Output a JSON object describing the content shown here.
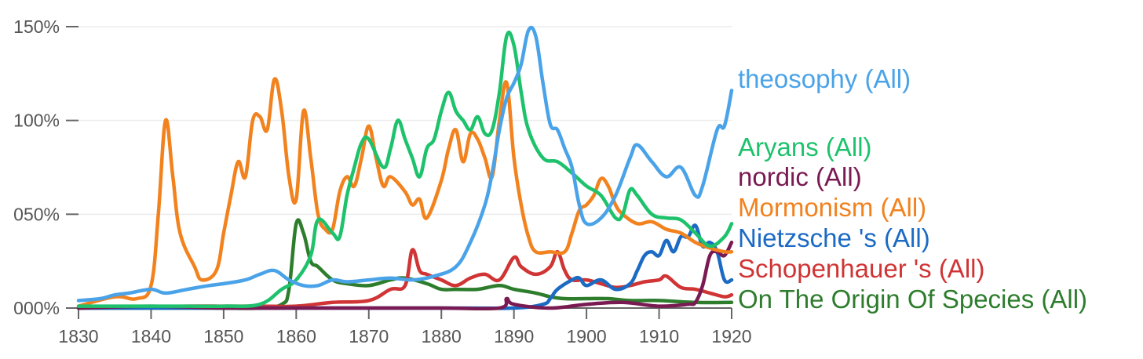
{
  "chart_data": {
    "type": "line",
    "x_ticks": [
      "1830",
      "1840",
      "1850",
      "1860",
      "1870",
      "1880",
      "1890",
      "1900",
      "1910",
      "1920"
    ],
    "y_ticks": [
      "000%",
      "050%",
      "100%",
      "150%"
    ],
    "y_tick_values": [
      0,
      0.5,
      1.0,
      1.5
    ],
    "xlim": [
      1830,
      1920
    ],
    "ylim": [
      0,
      1.5
    ],
    "grid": "horizontal",
    "legend_placement": "right",
    "series": [
      {
        "name": "theosophy (All)",
        "color": "#4AA3E8",
        "points": [
          [
            1830,
            0.04
          ],
          [
            1833,
            0.05
          ],
          [
            1835,
            0.07
          ],
          [
            1837,
            0.08
          ],
          [
            1840,
            0.1
          ],
          [
            1842,
            0.08
          ],
          [
            1845,
            0.1
          ],
          [
            1848,
            0.12
          ],
          [
            1850,
            0.13
          ],
          [
            1853,
            0.15
          ],
          [
            1855,
            0.18
          ],
          [
            1857,
            0.2
          ],
          [
            1859,
            0.15
          ],
          [
            1861,
            0.12
          ],
          [
            1863,
            0.12
          ],
          [
            1865,
            0.15
          ],
          [
            1867,
            0.14
          ],
          [
            1870,
            0.15
          ],
          [
            1873,
            0.16
          ],
          [
            1876,
            0.15
          ],
          [
            1879,
            0.17
          ],
          [
            1882,
            0.22
          ],
          [
            1884,
            0.35
          ],
          [
            1886,
            0.55
          ],
          [
            1887,
            0.72
          ],
          [
            1888,
            0.95
          ],
          [
            1889,
            1.12
          ],
          [
            1890,
            1.2
          ],
          [
            1891,
            1.3
          ],
          [
            1892,
            1.48
          ],
          [
            1893,
            1.45
          ],
          [
            1894,
            1.2
          ],
          [
            1895,
            0.98
          ],
          [
            1896,
            0.95
          ],
          [
            1897,
            0.85
          ],
          [
            1898,
            0.75
          ],
          [
            1899,
            0.55
          ],
          [
            1900,
            0.45
          ],
          [
            1902,
            0.48
          ],
          [
            1904,
            0.6
          ],
          [
            1906,
            0.8
          ],
          [
            1907,
            0.87
          ],
          [
            1909,
            0.78
          ],
          [
            1911,
            0.7
          ],
          [
            1913,
            0.75
          ],
          [
            1915,
            0.6
          ],
          [
            1916,
            0.65
          ],
          [
            1918,
            0.95
          ],
          [
            1919,
            0.97
          ],
          [
            1920,
            1.16
          ]
        ]
      },
      {
        "name": "Aryans (All)",
        "color": "#1EC26C",
        "points": [
          [
            1830,
            0.01
          ],
          [
            1835,
            0.01
          ],
          [
            1840,
            0.01
          ],
          [
            1845,
            0.01
          ],
          [
            1850,
            0.01
          ],
          [
            1855,
            0.02
          ],
          [
            1858,
            0.1
          ],
          [
            1860,
            0.15
          ],
          [
            1862,
            0.28
          ],
          [
            1863,
            0.47
          ],
          [
            1865,
            0.4
          ],
          [
            1866,
            0.38
          ],
          [
            1867,
            0.6
          ],
          [
            1868,
            0.75
          ],
          [
            1869,
            0.88
          ],
          [
            1870,
            0.9
          ],
          [
            1872,
            0.75
          ],
          [
            1873,
            0.85
          ],
          [
            1874,
            1.0
          ],
          [
            1875,
            0.9
          ],
          [
            1876,
            0.8
          ],
          [
            1877,
            0.7
          ],
          [
            1878,
            0.85
          ],
          [
            1879,
            0.9
          ],
          [
            1880,
            1.05
          ],
          [
            1881,
            1.15
          ],
          [
            1882,
            1.05
          ],
          [
            1883,
            1.0
          ],
          [
            1884,
            0.95
          ],
          [
            1885,
            1.02
          ],
          [
            1886,
            0.93
          ],
          [
            1887,
            0.95
          ],
          [
            1888,
            1.15
          ],
          [
            1889,
            1.45
          ],
          [
            1890,
            1.4
          ],
          [
            1891,
            1.15
          ],
          [
            1892,
            0.95
          ],
          [
            1894,
            0.8
          ],
          [
            1896,
            0.78
          ],
          [
            1898,
            0.72
          ],
          [
            1900,
            0.65
          ],
          [
            1902,
            0.6
          ],
          [
            1904,
            0.48
          ],
          [
            1905,
            0.5
          ],
          [
            1906,
            0.63
          ],
          [
            1907,
            0.6
          ],
          [
            1909,
            0.5
          ],
          [
            1911,
            0.48
          ],
          [
            1913,
            0.47
          ],
          [
            1915,
            0.4
          ],
          [
            1917,
            0.33
          ],
          [
            1919,
            0.38
          ],
          [
            1920,
            0.45
          ]
        ]
      },
      {
        "name": "nordic (All)",
        "color": "#7A1A52",
        "points": [
          [
            1830,
            0.0
          ],
          [
            1840,
            0.01
          ],
          [
            1850,
            0.0
          ],
          [
            1860,
            0.0
          ],
          [
            1870,
            0.0
          ],
          [
            1880,
            0.0
          ],
          [
            1888,
            0.0
          ],
          [
            1889,
            0.05
          ],
          [
            1890,
            0.02
          ],
          [
            1895,
            0.0
          ],
          [
            1900,
            0.02
          ],
          [
            1905,
            0.03
          ],
          [
            1910,
            0.01
          ],
          [
            1914,
            0.02
          ],
          [
            1915,
            0.03
          ],
          [
            1916,
            0.12
          ],
          [
            1917,
            0.28
          ],
          [
            1918,
            0.3
          ],
          [
            1919,
            0.28
          ],
          [
            1920,
            0.35
          ]
        ]
      },
      {
        "name": "Mormonism (All)",
        "color": "#F2821E",
        "points": [
          [
            1830,
            0.01
          ],
          [
            1835,
            0.06
          ],
          [
            1838,
            0.05
          ],
          [
            1840,
            0.12
          ],
          [
            1841,
            0.5
          ],
          [
            1842,
            1.0
          ],
          [
            1843,
            0.7
          ],
          [
            1844,
            0.4
          ],
          [
            1846,
            0.22
          ],
          [
            1847,
            0.15
          ],
          [
            1849,
            0.2
          ],
          [
            1850,
            0.4
          ],
          [
            1851,
            0.6
          ],
          [
            1852,
            0.78
          ],
          [
            1853,
            0.7
          ],
          [
            1854,
            1.0
          ],
          [
            1855,
            1.02
          ],
          [
            1856,
            0.95
          ],
          [
            1857,
            1.22
          ],
          [
            1858,
            1.05
          ],
          [
            1859,
            0.7
          ],
          [
            1860,
            0.58
          ],
          [
            1861,
            1.05
          ],
          [
            1862,
            0.8
          ],
          [
            1863,
            0.5
          ],
          [
            1864,
            0.42
          ],
          [
            1865,
            0.42
          ],
          [
            1866,
            0.62
          ],
          [
            1867,
            0.7
          ],
          [
            1868,
            0.65
          ],
          [
            1869,
            0.8
          ],
          [
            1870,
            0.97
          ],
          [
            1871,
            0.8
          ],
          [
            1872,
            0.65
          ],
          [
            1873,
            0.7
          ],
          [
            1875,
            0.62
          ],
          [
            1876,
            0.55
          ],
          [
            1877,
            0.58
          ],
          [
            1878,
            0.48
          ],
          [
            1880,
            0.68
          ],
          [
            1881,
            0.85
          ],
          [
            1882,
            0.95
          ],
          [
            1883,
            0.78
          ],
          [
            1884,
            0.93
          ],
          [
            1885,
            0.9
          ],
          [
            1886,
            0.8
          ],
          [
            1887,
            0.7
          ],
          [
            1888,
            1.0
          ],
          [
            1889,
            1.2
          ],
          [
            1890,
            0.8
          ],
          [
            1891,
            0.55
          ],
          [
            1892,
            0.38
          ],
          [
            1893,
            0.3
          ],
          [
            1895,
            0.3
          ],
          [
            1897,
            0.3
          ],
          [
            1898,
            0.4
          ],
          [
            1899,
            0.52
          ],
          [
            1900,
            0.55
          ],
          [
            1901,
            0.6
          ],
          [
            1902,
            0.69
          ],
          [
            1903,
            0.65
          ],
          [
            1904,
            0.55
          ],
          [
            1905,
            0.5
          ],
          [
            1907,
            0.45
          ],
          [
            1909,
            0.46
          ],
          [
            1911,
            0.42
          ],
          [
            1913,
            0.4
          ],
          [
            1915,
            0.35
          ],
          [
            1917,
            0.32
          ],
          [
            1919,
            0.3
          ],
          [
            1920,
            0.3
          ]
        ]
      },
      {
        "name": "Nietzsche 's (All)",
        "color": "#1B6AC4",
        "points": [
          [
            1830,
            0.0
          ],
          [
            1880,
            0.0
          ],
          [
            1890,
            0.0
          ],
          [
            1894,
            0.02
          ],
          [
            1895,
            0.05
          ],
          [
            1896,
            0.1
          ],
          [
            1898,
            0.15
          ],
          [
            1899,
            0.16
          ],
          [
            1900,
            0.12
          ],
          [
            1902,
            0.15
          ],
          [
            1904,
            0.1
          ],
          [
            1906,
            0.13
          ],
          [
            1907,
            0.2
          ],
          [
            1908,
            0.28
          ],
          [
            1909,
            0.3
          ],
          [
            1910,
            0.28
          ],
          [
            1911,
            0.36
          ],
          [
            1912,
            0.3
          ],
          [
            1913,
            0.38
          ],
          [
            1914,
            0.38
          ],
          [
            1915,
            0.44
          ],
          [
            1916,
            0.33
          ],
          [
            1917,
            0.35
          ],
          [
            1918,
            0.3
          ],
          [
            1919,
            0.15
          ],
          [
            1920,
            0.15
          ]
        ]
      },
      {
        "name": "Schopenhauer 's (All)",
        "color": "#D03434",
        "points": [
          [
            1830,
            0.0
          ],
          [
            1845,
            0.01
          ],
          [
            1850,
            0.01
          ],
          [
            1855,
            0.01
          ],
          [
            1860,
            0.01
          ],
          [
            1865,
            0.03
          ],
          [
            1870,
            0.04
          ],
          [
            1873,
            0.1
          ],
          [
            1875,
            0.12
          ],
          [
            1876,
            0.31
          ],
          [
            1877,
            0.2
          ],
          [
            1878,
            0.18
          ],
          [
            1880,
            0.15
          ],
          [
            1882,
            0.12
          ],
          [
            1884,
            0.16
          ],
          [
            1886,
            0.18
          ],
          [
            1888,
            0.15
          ],
          [
            1890,
            0.27
          ],
          [
            1891,
            0.22
          ],
          [
            1893,
            0.18
          ],
          [
            1895,
            0.22
          ],
          [
            1896,
            0.3
          ],
          [
            1897,
            0.2
          ],
          [
            1898,
            0.15
          ],
          [
            1900,
            0.15
          ],
          [
            1902,
            0.13
          ],
          [
            1904,
            0.11
          ],
          [
            1906,
            0.12
          ],
          [
            1908,
            0.14
          ],
          [
            1910,
            0.15
          ],
          [
            1911,
            0.17
          ],
          [
            1913,
            0.11
          ],
          [
            1915,
            0.1
          ],
          [
            1917,
            0.08
          ],
          [
            1919,
            0.06
          ],
          [
            1920,
            0.07
          ]
        ]
      },
      {
        "name": "On The Origin Of Species (All)",
        "color": "#2D7D2D",
        "points": [
          [
            1830,
            0.0
          ],
          [
            1835,
            0.0
          ],
          [
            1840,
            0.0
          ],
          [
            1845,
            0.0
          ],
          [
            1850,
            0.0
          ],
          [
            1855,
            0.0
          ],
          [
            1858,
            0.02
          ],
          [
            1859,
            0.1
          ],
          [
            1860,
            0.45
          ],
          [
            1861,
            0.4
          ],
          [
            1862,
            0.25
          ],
          [
            1863,
            0.22
          ],
          [
            1865,
            0.15
          ],
          [
            1867,
            0.13
          ],
          [
            1870,
            0.12
          ],
          [
            1873,
            0.15
          ],
          [
            1875,
            0.16
          ],
          [
            1878,
            0.13
          ],
          [
            1880,
            0.1
          ],
          [
            1882,
            0.1
          ],
          [
            1885,
            0.1
          ],
          [
            1888,
            0.12
          ],
          [
            1890,
            0.1
          ],
          [
            1893,
            0.08
          ],
          [
            1895,
            0.06
          ],
          [
            1897,
            0.05
          ],
          [
            1900,
            0.05
          ],
          [
            1903,
            0.05
          ],
          [
            1906,
            0.04
          ],
          [
            1910,
            0.04
          ],
          [
            1915,
            0.03
          ],
          [
            1920,
            0.03
          ]
        ]
      }
    ]
  }
}
